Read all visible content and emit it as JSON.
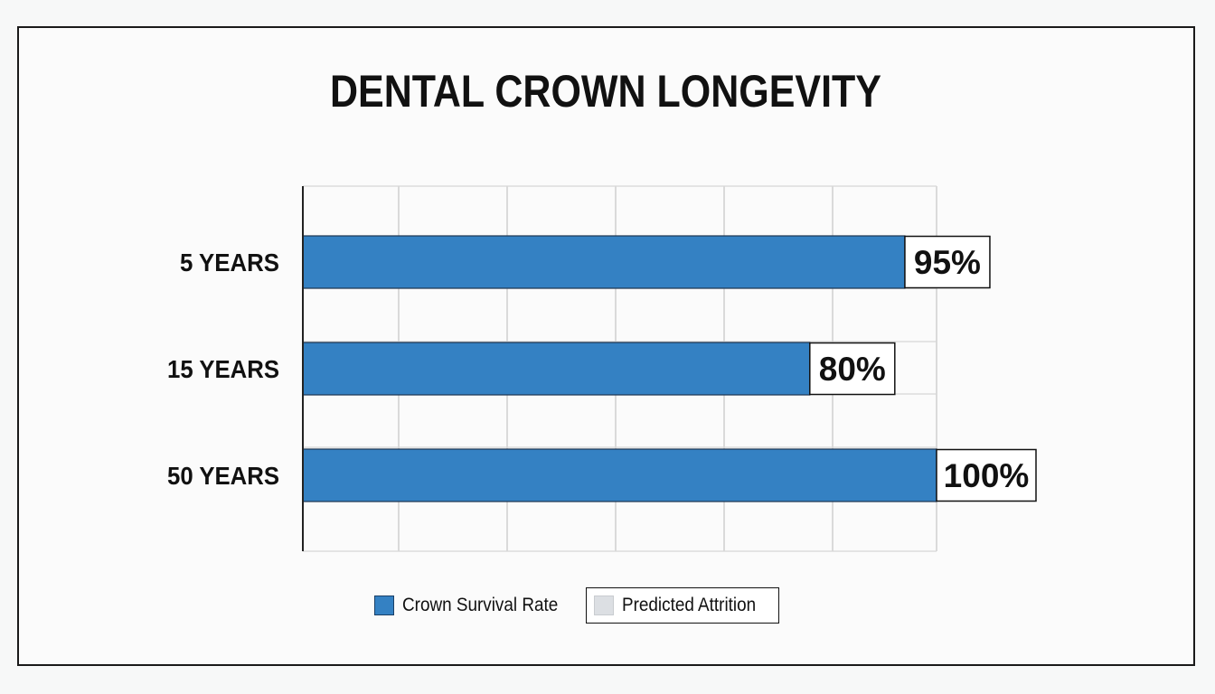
{
  "chart_data": {
    "type": "bar",
    "orientation": "horizontal",
    "title": "DENTAL CROWN LONGEVITY",
    "categories": [
      "5 YEARS",
      "15 YEARS",
      "50 YEARS"
    ],
    "series": [
      {
        "name": "Crown Survival Rate",
        "values": [
          95,
          80,
          100
        ]
      }
    ],
    "value_labels": [
      "95%",
      "80%",
      "100%"
    ],
    "xlim": [
      0,
      100
    ],
    "grid": true,
    "legend_position": "bottom",
    "legend": [
      {
        "label": "Crown Survival Rate",
        "color": "#3481c3"
      },
      {
        "label": "Predicted Attrition",
        "color": "#dcdfe3"
      }
    ]
  }
}
